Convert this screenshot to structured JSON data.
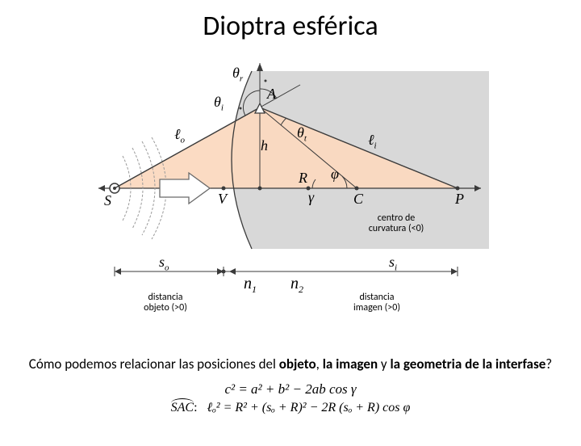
{
  "title": "Dioptra esférica",
  "diagram": {
    "type": "optics-ray-diagram",
    "background_color": "#ffffff",
    "medium2_fill": "#d8d8d8",
    "refraction_cone_fill": "#fbd9c0",
    "axis_color": "#3a3a3a",
    "ray_color": "#3a3a3a",
    "arc_color": "#3a3a3a",
    "wave_color": "#9a9a9a",
    "arrow_fill": "#ffffff",
    "arrow_stroke": "#6a6a6a",
    "points": {
      "S": "S",
      "A": "A",
      "V": "V",
      "R": "R",
      "C": "C",
      "P": "P"
    },
    "greek": {
      "theta_r": "θ",
      "theta_r_sub": "r",
      "theta_i": "θ",
      "theta_i_sub": "i",
      "theta_t": "θ",
      "theta_t_sub": "t",
      "phi": "φ",
      "gamma": "γ"
    },
    "segments": {
      "lo": "ℓ",
      "lo_sub": "o",
      "li": "ℓ",
      "li_sub": "i",
      "h": "h",
      "so": "s",
      "so_sub": "o",
      "si": "s",
      "si_sub": "i",
      "n1": "n",
      "n1_sub": "1",
      "n2": "n",
      "n2_sub": "2"
    }
  },
  "labels": {
    "centro": "centro de\ncurvatura (<0)",
    "distancia_objeto": "distancia\nobjeto (>0)",
    "distancia_imagen": "distancia\nimagen (>0)"
  },
  "question": {
    "prefix": "Cómo podemos relacionar las posiciones del ",
    "b1": "objeto",
    "mid1": ", ",
    "b2": "la imagen",
    "mid2": " y ",
    "b3": "la geometria de la interfase",
    "suffix": "?"
  },
  "formulas": {
    "line1": "c² = a² + b² − 2ab cos γ",
    "sac_label": "SAC",
    "line2": "ℓₒ² = R² + (sₒ + R)² − 2R (sₒ + R) cos φ"
  }
}
